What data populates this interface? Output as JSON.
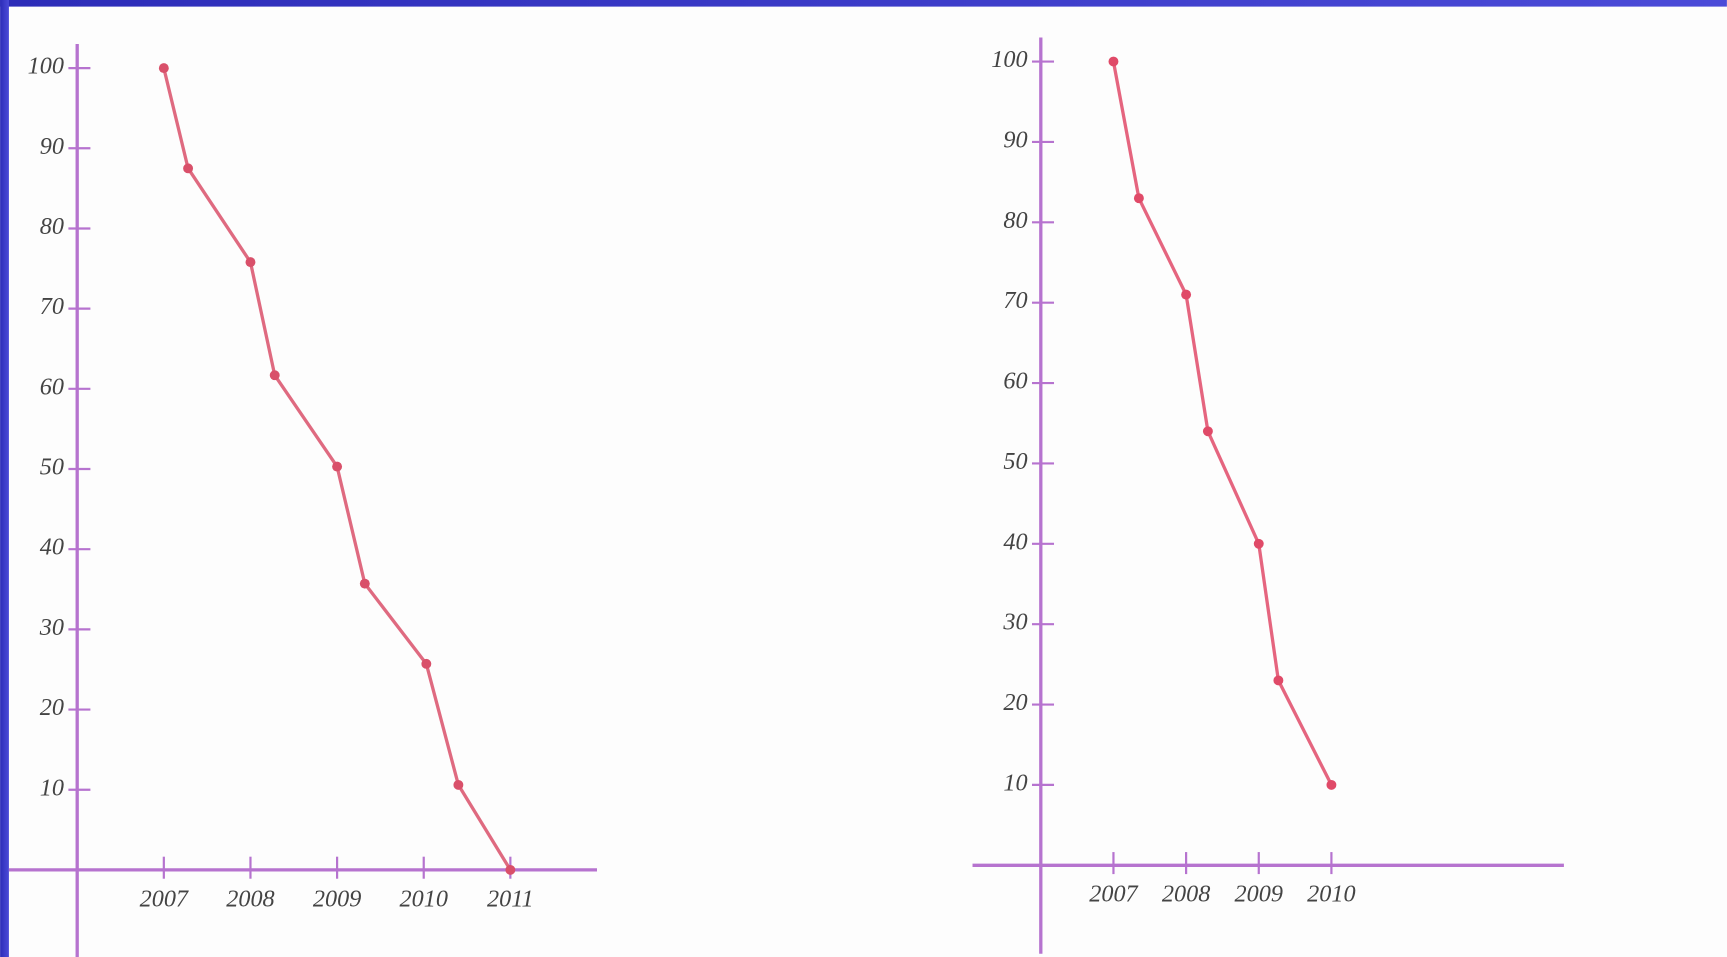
{
  "chart_data": [
    {
      "type": "line",
      "x": [
        2007,
        2007.28,
        2008,
        2008.28,
        2009,
        2009.32,
        2010.03,
        2010.4,
        2011
      ],
      "values": [
        100,
        87.5,
        75.8,
        61.7,
        50.3,
        35.7,
        25.7,
        10.6,
        0
      ],
      "color": "#d9506a",
      "xlim": [
        2006,
        2012
      ],
      "ylim": [
        -11,
        103
      ],
      "xticks": [
        2007,
        2008,
        2009,
        2010,
        2011
      ],
      "yticks": [
        10,
        20,
        30,
        40,
        50,
        60,
        70,
        80,
        90,
        100
      ]
    },
    {
      "type": "line",
      "x": [
        2007,
        2007.35,
        2008,
        2008.3,
        2009,
        2009.27,
        2010
      ],
      "values": [
        100,
        83,
        71,
        54,
        40,
        23,
        10
      ],
      "color": "#e04a68",
      "xlim": [
        2006,
        2013.2
      ],
      "ylim": [
        -11,
        103
      ],
      "xticks": [
        2007,
        2008,
        2009,
        2010
      ],
      "yticks": [
        10,
        20,
        30,
        40,
        50,
        60,
        70,
        80,
        90,
        100
      ]
    }
  ]
}
